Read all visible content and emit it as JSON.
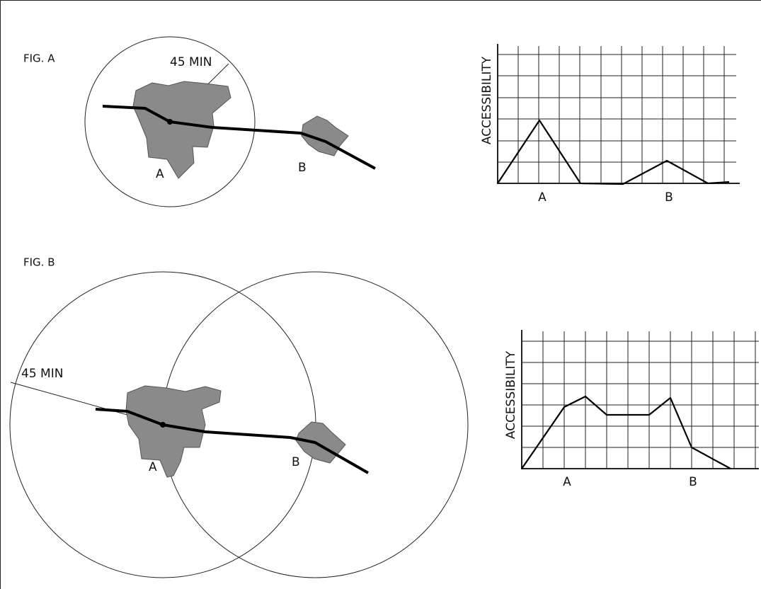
{
  "figures": [
    {
      "label": "FIG. A",
      "map": {
        "radius_label": "45 MIN",
        "town_a": "A",
        "town_b": "B"
      },
      "graph": {
        "y_label": "ACCESSIBILITY",
        "x_labels": [
          "A",
          "B"
        ]
      }
    },
    {
      "label": "FIG. B",
      "map": {
        "radius_label": "45 MIN",
        "town_a": "A",
        "town_b": "B"
      },
      "graph": {
        "y_label": "ACCESSIBILITY",
        "x_labels": [
          "A",
          "B"
        ]
      }
    }
  ]
}
